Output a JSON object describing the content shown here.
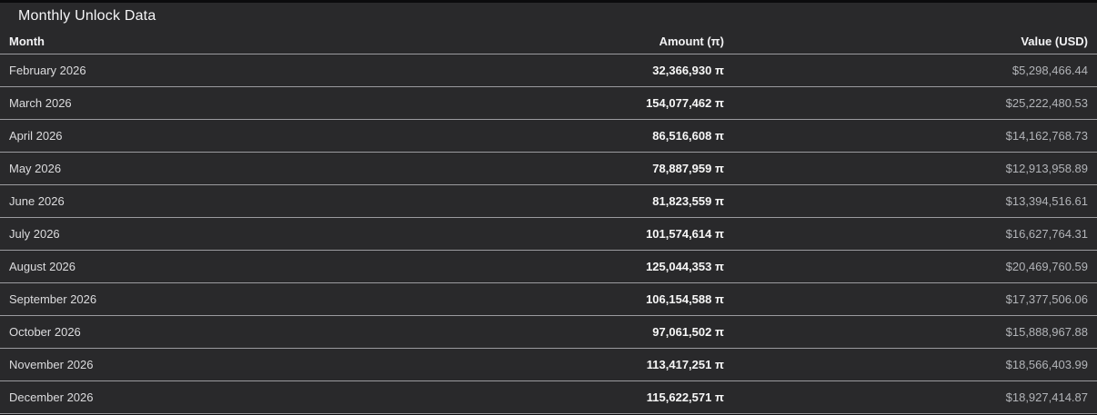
{
  "chart_data": {
    "type": "table",
    "title": "Monthly Unlock Data",
    "columns": [
      "Month",
      "Amount (π)",
      "Value (USD)"
    ],
    "rows": [
      [
        "February 2026",
        "32,366,930 π",
        "$5,298,466.44"
      ],
      [
        "March 2026",
        "154,077,462 π",
        "$25,222,480.53"
      ],
      [
        "April 2026",
        "86,516,608 π",
        "$14,162,768.73"
      ],
      [
        "May 2026",
        "78,887,959 π",
        "$12,913,958.89"
      ],
      [
        "June 2026",
        "81,823,559 π",
        "$13,394,516.61"
      ],
      [
        "July 2026",
        "101,574,614 π",
        "$16,627,764.31"
      ],
      [
        "August 2026",
        "125,044,353 π",
        "$20,469,760.59"
      ],
      [
        "September 2026",
        "106,154,588 π",
        "$17,377,506.06"
      ],
      [
        "October 2026",
        "97,061,502 π",
        "$15,888,967.88"
      ],
      [
        "November 2026",
        "113,417,251 π",
        "$18,566,403.99"
      ],
      [
        "December 2026",
        "115,622,571 π",
        "$18,927,414.87"
      ]
    ],
    "layout": {
      "column_align": [
        "left",
        "right",
        "right"
      ],
      "grid": "horizontal-dividers",
      "legend": "none",
      "theme": "dark"
    },
    "colors": {
      "card_background": "#29292b",
      "page_background": "#0b0b0d",
      "divider": "#9b9b9f",
      "title_text": "#f5f5f7",
      "header_text": "#f2f2f4",
      "month_text": "#dcdcde",
      "amount_text": "#f7f7f7",
      "value_text": "#b2b4b8"
    }
  }
}
